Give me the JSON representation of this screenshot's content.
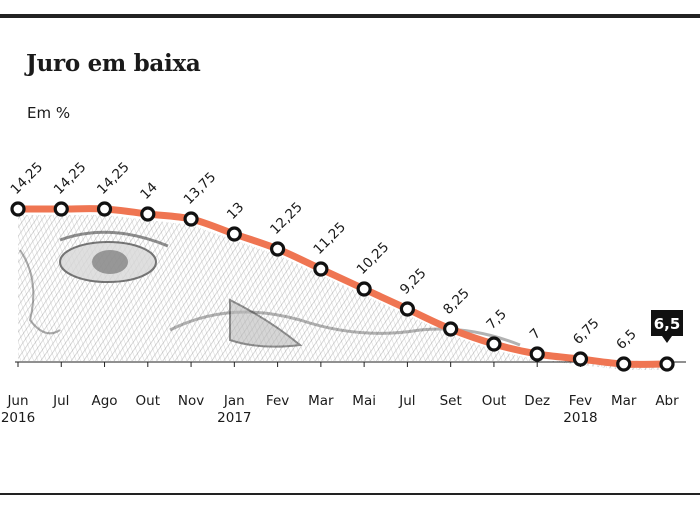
{
  "header": {
    "title": "Juro em baixa",
    "unit": "Em %"
  },
  "colors": {
    "line": "#ef7552",
    "marker_stroke": "#111111",
    "marker_fill": "#ffffff",
    "rules": "#222222",
    "callout_bg": "#111111",
    "callout_text": "#ffffff",
    "background_engraving": "#b8b8b8"
  },
  "chart_data": {
    "type": "line",
    "title": "Juro em baixa",
    "ylabel": "Em %",
    "ylim": [
      6,
      15
    ],
    "grid": false,
    "x_labels": [
      [
        "Jun",
        "2016"
      ],
      [
        "Jul"
      ],
      [
        "Ago"
      ],
      [
        "Out"
      ],
      [
        "Nov"
      ],
      [
        "Jan",
        "2017"
      ],
      [
        "Fev"
      ],
      [
        "Mar"
      ],
      [
        "Mai"
      ],
      [
        "Jul"
      ],
      [
        "Set"
      ],
      [
        "Out"
      ],
      [
        "Dez"
      ],
      [
        "Fev",
        "2018"
      ],
      [
        "Mar"
      ],
      [
        "Abr"
      ]
    ],
    "series": [
      {
        "values": [
          14.25,
          14.25,
          14.25,
          14,
          13.75,
          13,
          12.25,
          11.25,
          10.25,
          9.25,
          8.25,
          7.5,
          7,
          6.75,
          6.5,
          6.5
        ],
        "labels": [
          "14,25",
          "14,25",
          "14,25",
          "14",
          "13,75",
          "13",
          "12,25",
          "11,25",
          "10,25",
          "9,25",
          "8,25",
          "7,5",
          "7",
          "6,75",
          "6,5",
          "6,5"
        ]
      }
    ],
    "highlight_last": true
  }
}
